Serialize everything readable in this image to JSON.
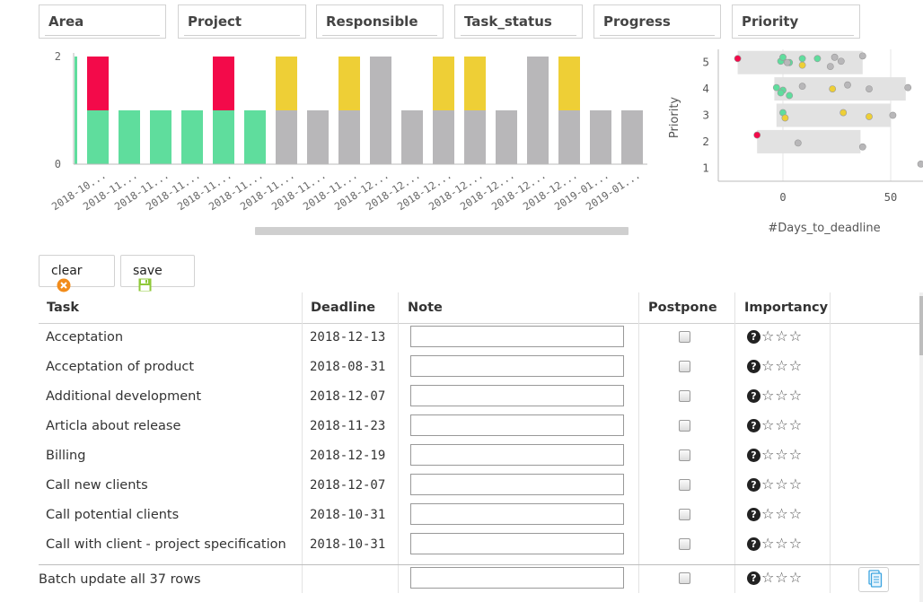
{
  "filters": [
    "Area",
    "Project",
    "Responsible",
    "Task_status",
    "Progress",
    "Priority"
  ],
  "bar_chart": {
    "chart_data": {
      "type": "bar",
      "stacked": true,
      "categories": [
        "2018-10...",
        "2018-11...",
        "2018-11...",
        "2018-11...",
        "2018-11...",
        "2018-11...",
        "2018-11...",
        "2018-11...",
        "2018-11...",
        "2018-12...",
        "2018-12...",
        "2018-12...",
        "2018-12...",
        "2018-12...",
        "2018-12...",
        "2018-12...",
        "2019-01...",
        "2019-01..."
      ],
      "series": [
        {
          "color": "#5fdd9d",
          "values": [
            1,
            1,
            1,
            1,
            1,
            1,
            0,
            0,
            0,
            0,
            0,
            0,
            0,
            0,
            0,
            0,
            0,
            0
          ]
        },
        {
          "color": "#b8b7b9",
          "values": [
            0,
            0,
            0,
            0,
            0,
            0,
            1,
            1,
            1,
            2,
            1,
            1,
            1,
            1,
            2,
            1,
            1,
            1
          ]
        },
        {
          "color": "#eecf36",
          "values": [
            0,
            0,
            0,
            0,
            0,
            0,
            1,
            0,
            1,
            0,
            0,
            1,
            1,
            0,
            0,
            1,
            0,
            0
          ]
        },
        {
          "color": "#f30a4a",
          "values": [
            1,
            0,
            0,
            0,
            1,
            0,
            0,
            0,
            0,
            0,
            0,
            0,
            0,
            0,
            0,
            0,
            0,
            0
          ]
        }
      ],
      "yticks": [
        "0",
        "2"
      ],
      "ylim": [
        0,
        2
      ]
    }
  },
  "scatter_chart": {
    "chart_data": {
      "type": "scatter",
      "xlabel": "#Days_to_deadline",
      "ylabel": "Priority",
      "xticks": [
        "0",
        "50"
      ],
      "yticks": [
        "1",
        "2",
        "3",
        "4",
        "5"
      ],
      "xlim": [
        -30,
        65
      ],
      "ylim": [
        0.5,
        5.5
      ],
      "ranges": [
        {
          "y": 5,
          "x0": -21,
          "x1": 37
        },
        {
          "y": 4,
          "x0": -4,
          "x1": 57
        },
        {
          "y": 3,
          "x0": -3,
          "x1": 50
        },
        {
          "y": 2,
          "x0": -12,
          "x1": 36
        }
      ],
      "points": [
        {
          "x": -21,
          "y": 5.15,
          "color": "#f30a4a"
        },
        {
          "x": -1,
          "y": 5.05,
          "color": "#5fdd9d"
        },
        {
          "x": 0,
          "y": 5.2,
          "color": "#5fdd9d"
        },
        {
          "x": 3,
          "y": 5.0,
          "color": "#5fdd9d"
        },
        {
          "x": 9,
          "y": 5.15,
          "color": "#5fdd9d"
        },
        {
          "x": 16,
          "y": 5.15,
          "color": "#5fdd9d"
        },
        {
          "x": 9,
          "y": 4.9,
          "color": "#eecf36"
        },
        {
          "x": 2,
          "y": 5.0,
          "color": "#b8b7b9"
        },
        {
          "x": 24,
          "y": 5.2,
          "color": "#b8b7b9"
        },
        {
          "x": 27,
          "y": 5.05,
          "color": "#b8b7b9"
        },
        {
          "x": 22,
          "y": 4.85,
          "color": "#b8b7b9"
        },
        {
          "x": 37,
          "y": 5.25,
          "color": "#b8b7b9"
        },
        {
          "x": -3,
          "y": 4.05,
          "color": "#5fdd9d"
        },
        {
          "x": 0,
          "y": 3.95,
          "color": "#5fdd9d"
        },
        {
          "x": 3,
          "y": 3.75,
          "color": "#5fdd9d"
        },
        {
          "x": -1,
          "y": 3.85,
          "color": "#5fdd9d"
        },
        {
          "x": 9,
          "y": 4.1,
          "color": "#b8b7b9"
        },
        {
          "x": 23,
          "y": 4.0,
          "color": "#eecf36"
        },
        {
          "x": 30,
          "y": 4.15,
          "color": "#b8b7b9"
        },
        {
          "x": 40,
          "y": 4.0,
          "color": "#b8b7b9"
        },
        {
          "x": 58,
          "y": 4.05,
          "color": "#b8b7b9"
        },
        {
          "x": 0,
          "y": 3.1,
          "color": "#5fdd9d"
        },
        {
          "x": 1,
          "y": 2.9,
          "color": "#eecf36"
        },
        {
          "x": 28,
          "y": 3.1,
          "color": "#eecf36"
        },
        {
          "x": 40,
          "y": 2.95,
          "color": "#eecf36"
        },
        {
          "x": 51,
          "y": 3.0,
          "color": "#b8b7b9"
        },
        {
          "x": -12,
          "y": 2.25,
          "color": "#f30a4a"
        },
        {
          "x": 7,
          "y": 1.95,
          "color": "#b8b7b9"
        },
        {
          "x": 37,
          "y": 1.8,
          "color": "#b8b7b9"
        },
        {
          "x": 64,
          "y": 1.15,
          "color": "#b8b7b9"
        }
      ]
    }
  },
  "buttons": {
    "clear": "clear",
    "save": "save"
  },
  "table": {
    "headers": {
      "task": "Task",
      "deadline": "Deadline",
      "note": "Note",
      "postpone": "Postpone",
      "importancy": "Importancy"
    },
    "rows": [
      {
        "task": "Acceptation",
        "deadline": "2018-12-13"
      },
      {
        "task": "Acceptation of product",
        "deadline": "2018-08-31"
      },
      {
        "task": "Additional development",
        "deadline": "2018-12-07"
      },
      {
        "task": "Articla about release",
        "deadline": "2018-11-23"
      },
      {
        "task": "Billing",
        "deadline": "2018-12-19"
      },
      {
        "task": "Call new clients",
        "deadline": "2018-12-07"
      },
      {
        "task": "Call potential clients",
        "deadline": "2018-10-31"
      },
      {
        "task": "Call with client - project specification",
        "deadline": "2018-10-31"
      }
    ],
    "batch_label": "Batch update all 37 rows"
  },
  "colors": {
    "green": "#5fdd9d",
    "grey": "#b8b7b9",
    "yellow": "#eecf36",
    "red": "#f30a4a"
  },
  "icons": {
    "clear": "x-circle-icon",
    "save": "floppy-disk-icon",
    "copy": "copy-document-icon",
    "help": "question-circle-icon",
    "star": "star-outline-icon"
  }
}
